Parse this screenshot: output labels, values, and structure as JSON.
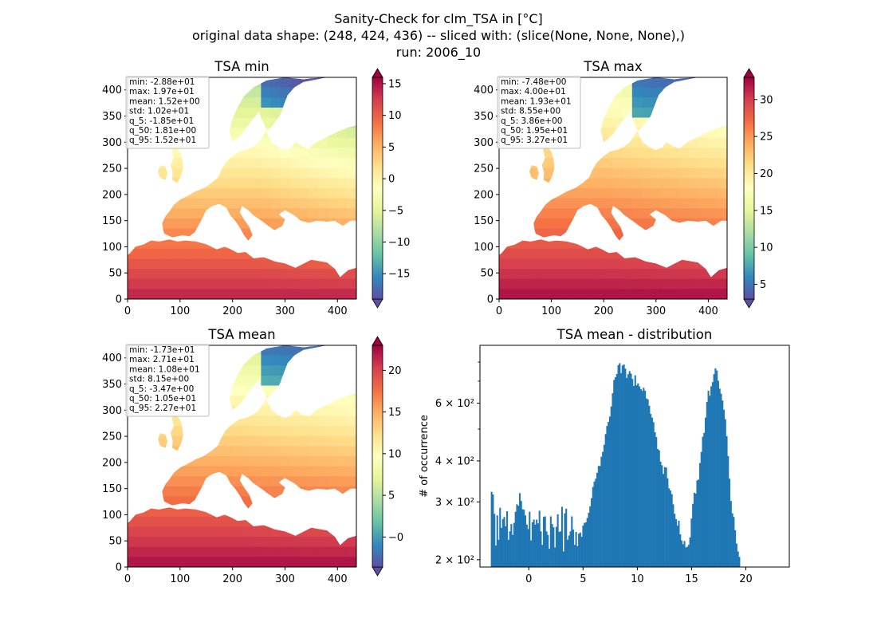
{
  "figure": {
    "title_lines": [
      "Sanity-Check for clm_TSA in [°C]",
      "original data shape: (248, 424, 436) -- sliced with: (slice(None, None, None),)",
      "run: 2006_10"
    ]
  },
  "colors": {
    "spectral": [
      "#5e4fa2",
      "#3288bd",
      "#66c2a5",
      "#abdda4",
      "#e6f598",
      "#ffffbf",
      "#fee08b",
      "#fdae61",
      "#f46d43",
      "#d53e4f",
      "#9e0142"
    ],
    "histogram_bar": "#1f77b4"
  },
  "panels": [
    {
      "title": "TSA min",
      "colormap": "Spectral_r",
      "stats": [
        "min: -2.88e+01",
        "max: 1.97e+01",
        "mean: 1.52e+00",
        "std: 1.02e+01",
        "q_5: -1.85e+01",
        "q_50: 1.81e+00",
        "q_95: 1.52e+01"
      ],
      "map_x_ticks": [
        "0",
        "100",
        "200",
        "300",
        "400"
      ],
      "map_y_ticks": [
        "0",
        "50",
        "100",
        "150",
        "200",
        "250",
        "300",
        "350",
        "400"
      ],
      "colorbar_range": [
        -19,
        16
      ],
      "colorbar_ticks": [
        "-15",
        "-10",
        "-5",
        "0",
        "5",
        "10",
        "15"
      ]
    },
    {
      "title": "TSA max",
      "colormap": "Spectral_r",
      "stats": [
        "min: -7.48e+00",
        "max: 4.00e+01",
        "mean: 1.93e+01",
        "std: 8.55e+00",
        "q_5: 3.86e+00",
        "q_50: 1.95e+01",
        "q_95: 3.27e+01"
      ],
      "map_x_ticks": [
        "0",
        "100",
        "200",
        "300",
        "400"
      ],
      "map_y_ticks": [
        "0",
        "50",
        "100",
        "150",
        "200",
        "250",
        "300",
        "350",
        "400"
      ],
      "colorbar_range": [
        3,
        33
      ],
      "colorbar_ticks": [
        "5",
        "10",
        "15",
        "20",
        "25",
        "30"
      ]
    },
    {
      "title": "TSA mean",
      "colormap": "Spectral_r",
      "stats": [
        "min: -1.73e+01",
        "max: 2.71e+01",
        "mean: 1.08e+01",
        "std: 8.15e+00",
        "q_5: -3.47e+00",
        "q_50: 1.05e+01",
        "q_95: 2.27e+01"
      ],
      "map_x_ticks": [
        "0",
        "100",
        "200",
        "300",
        "400"
      ],
      "map_y_ticks": [
        "0",
        "50",
        "100",
        "150",
        "200",
        "250",
        "300",
        "350",
        "400"
      ],
      "colorbar_range": [
        -3.6,
        23
      ],
      "colorbar_ticks": [
        "-0",
        "5",
        "10",
        "15",
        "20"
      ]
    }
  ],
  "chart_data": {
    "type": "bar",
    "title": "TSA mean - distribution",
    "xlabel": "",
    "ylabel": "# of occurrence",
    "y_scale": "log",
    "x_ticks": [
      "0",
      "5",
      "10",
      "15",
      "20"
    ],
    "y_ticks": [
      "2 × 10²",
      "3 × 10²",
      "4 × 10²",
      "6 × 10²"
    ],
    "xlim": [
      -4.5,
      24
    ],
    "ylim": [
      190,
      900
    ],
    "bin_start": -3.5,
    "bin_width": 0.1297,
    "counts": [
      322,
      316,
      276,
      221,
      273,
      230,
      288,
      250,
      266,
      270,
      253,
      281,
      230,
      244,
      257,
      238,
      259,
      280,
      295,
      292,
      319,
      302,
      285,
      284,
      273,
      256,
      248,
      280,
      229,
      260,
      265,
      256,
      265,
      258,
      282,
      244,
      222,
      270,
      271,
      244,
      238,
      216,
      271,
      257,
      251,
      218,
      252,
      275,
      243,
      244,
      290,
      212,
      277,
      286,
      230,
      237,
      244,
      271,
      247,
      222,
      243,
      220,
      240,
      242,
      235,
      254,
      259,
      260,
      268,
      278,
      291,
      308,
      333,
      346,
      353,
      368,
      386,
      386,
      412,
      426,
      448,
      483,
      511,
      526,
      546,
      586,
      643,
      706,
      719,
      736,
      783,
      794,
      741,
      781,
      787,
      764,
      716,
      735,
      751,
      738,
      711,
      677,
      729,
      680,
      689,
      675,
      662,
      654,
      668,
      655,
      620,
      616,
      589,
      556,
      542,
      525,
      489,
      473,
      435,
      431,
      398,
      388,
      365,
      383,
      382,
      354,
      330,
      325,
      317,
      295,
      276,
      266,
      254,
      263,
      239,
      229,
      223,
      228,
      218,
      219,
      222,
      234,
      267,
      296,
      320,
      318,
      349,
      351,
      394,
      426,
      474,
      487,
      542,
      605,
      655,
      632,
      675,
      695,
      735,
      766,
      754,
      702,
      664,
      641,
      611,
      573,
      536,
      476,
      414,
      353,
      302,
      277,
      270,
      246,
      224,
      212,
      204
    ]
  }
}
